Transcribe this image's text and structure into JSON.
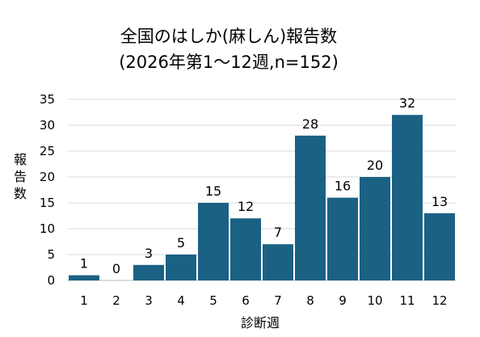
{
  "chart_data": {
    "type": "bar",
    "title": "全国のはしか(麻しん)報告数",
    "subtitle": "(2026年第1～12週,n=152)",
    "xlabel": "診断週",
    "ylabel": "報告数",
    "categories": [
      "1",
      "2",
      "3",
      "4",
      "5",
      "6",
      "7",
      "8",
      "9",
      "10",
      "11",
      "12"
    ],
    "values": [
      1,
      0,
      3,
      5,
      15,
      12,
      7,
      28,
      16,
      20,
      32,
      13
    ],
    "data_labels": [
      "1",
      "0",
      "3",
      "5",
      "15",
      "12",
      "7",
      "28",
      "16",
      "20",
      "32",
      "13"
    ],
    "ylim": [
      0,
      35
    ],
    "yticks": [
      0,
      5,
      10,
      15,
      20,
      25,
      30,
      35
    ],
    "ytick_labels": [
      "0",
      "5",
      "10",
      "15",
      "20",
      "25",
      "30",
      "35"
    ],
    "grid": true,
    "legend": "none",
    "colors": {
      "bar": "#1b6184",
      "grid": "#d9d9d9",
      "text": "#000000"
    }
  }
}
